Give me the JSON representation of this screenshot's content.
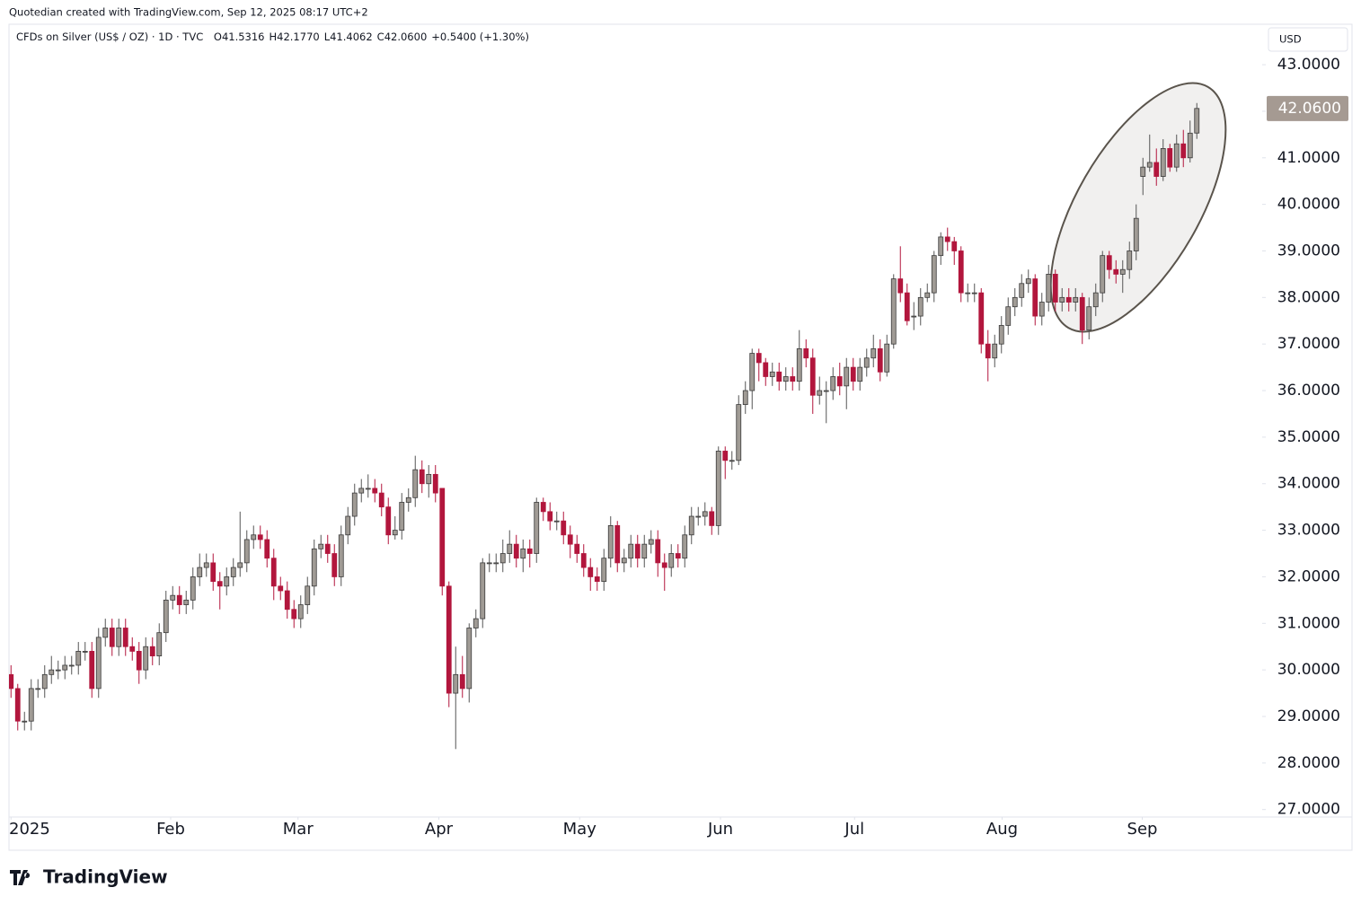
{
  "header": {
    "credit": "Quotedian created with TradingView.com, Sep 12, 2025 08:17 UTC+2"
  },
  "footer": {
    "brand": "TradingView"
  },
  "chart_data": {
    "type": "candlestick",
    "symbol": "CFDs on Silver (US$ / OZ) · 1D · TVC",
    "ohlc_labels": [
      "O41.5316",
      "H42.1770",
      "L41.4062",
      "C42.0600",
      "+0.5400 (+1.30%)"
    ],
    "currency": "USD",
    "last_price": {
      "value": 42.06,
      "label": "42.0600"
    },
    "up_color": "#a09b95",
    "down_color": "#b2163d",
    "outline_color": "#3a3a3a",
    "ylim": [
      26.84,
      43.85
    ],
    "yticks": [
      {
        "value": 27,
        "label": "27.0000"
      },
      {
        "value": 28,
        "label": "28.0000"
      },
      {
        "value": 29,
        "label": "29.0000"
      },
      {
        "value": 30,
        "label": "30.0000"
      },
      {
        "value": 31,
        "label": "31.0000"
      },
      {
        "value": 32,
        "label": "32.0000"
      },
      {
        "value": 33,
        "label": "33.0000"
      },
      {
        "value": 34,
        "label": "34.0000"
      },
      {
        "value": 35,
        "label": "35.0000"
      },
      {
        "value": 36,
        "label": "36.0000"
      },
      {
        "value": 37,
        "label": "37.0000"
      },
      {
        "value": 38,
        "label": "38.0000"
      },
      {
        "value": 39,
        "label": "39.0000"
      },
      {
        "value": 40,
        "label": "40.0000"
      },
      {
        "value": 41,
        "label": "41.0000"
      },
      {
        "value": 42,
        "label": "42.0000"
      },
      {
        "value": 43,
        "label": "43.0000"
      }
    ],
    "xlim": [
      -0.3,
      185.7
    ],
    "xticks": [
      {
        "value": 0,
        "label": "2025"
      },
      {
        "value": 23.7,
        "label": "Feb"
      },
      {
        "value": 42.6,
        "label": "Mar"
      },
      {
        "value": 63.5,
        "label": "Apr"
      },
      {
        "value": 84.4,
        "label": "May"
      },
      {
        "value": 105.3,
        "label": "Jun"
      },
      {
        "value": 125.2,
        "label": "Jul"
      },
      {
        "value": 147.1,
        "label": "Aug"
      },
      {
        "value": 167.9,
        "label": "Sep"
      }
    ],
    "open": [
      29.9,
      29.6,
      28.9,
      28.9,
      29.6,
      29.6,
      29.9,
      30.0,
      30.0,
      30.1,
      30.1,
      30.4,
      30.4,
      29.6,
      30.7,
      30.9,
      30.5,
      30.9,
      30.5,
      30.4,
      30.0,
      30.5,
      30.3,
      30.8,
      31.5,
      31.6,
      31.4,
      31.5,
      32.0,
      32.2,
      32.3,
      31.9,
      31.8,
      32.0,
      32.2,
      32.3,
      32.8,
      32.9,
      32.8,
      32.4,
      31.8,
      31.7,
      31.3,
      31.1,
      31.4,
      31.8,
      32.6,
      32.7,
      32.5,
      32.0,
      32.9,
      33.3,
      33.8,
      33.9,
      33.9,
      33.8,
      33.5,
      32.9,
      33.0,
      33.6,
      33.7,
      34.3,
      34.0,
      34.2,
      33.9,
      31.8,
      29.5,
      29.9,
      29.6,
      30.9,
      31.1,
      32.3,
      32.3,
      32.3,
      32.5,
      32.7,
      32.4,
      32.6,
      32.5,
      33.6,
      33.4,
      33.2,
      33.2,
      32.9,
      32.7,
      32.5,
      32.2,
      32.0,
      31.9,
      32.4,
      33.1,
      32.3,
      32.4,
      32.7,
      32.4,
      32.7,
      32.8,
      32.3,
      32.2,
      32.5,
      32.4,
      32.9,
      33.3,
      33.3,
      33.4,
      33.1,
      34.7,
      34.5,
      34.5,
      35.7,
      36.0,
      36.8,
      36.6,
      36.3,
      36.4,
      36.2,
      36.3,
      36.2,
      36.9,
      36.7,
      35.9,
      36.0,
      36.0,
      36.3,
      36.1,
      36.5,
      36.2,
      36.5,
      36.7,
      36.9,
      36.4,
      37.0,
      38.4,
      38.1,
      37.6,
      37.6,
      38.0,
      38.1,
      38.9,
      39.3,
      39.2,
      39.0,
      38.1,
      38.1,
      38.1,
      37.0,
      36.7,
      37.0,
      37.4,
      37.8,
      38.0,
      38.3,
      38.4,
      37.6,
      37.9,
      38.5,
      37.9,
      38.0,
      37.9,
      38.0,
      37.3,
      37.8,
      38.1,
      38.9,
      38.6,
      38.5,
      38.6,
      39.0,
      40.6,
      40.8,
      40.9,
      40.6,
      41.2,
      40.8,
      41.3,
      41.0,
      41.5316
    ],
    "high": [
      30.1,
      29.7,
      29.1,
      29.8,
      29.8,
      30.1,
      30.3,
      30.2,
      30.3,
      30.3,
      30.6,
      30.6,
      30.6,
      30.9,
      31.1,
      31.1,
      31.1,
      31.1,
      30.7,
      30.6,
      30.7,
      30.7,
      31.0,
      31.7,
      31.8,
      31.8,
      31.7,
      32.2,
      32.5,
      32.5,
      32.5,
      32.1,
      32.2,
      32.4,
      33.4,
      33.0,
      33.1,
      33.1,
      33.0,
      32.6,
      32.0,
      31.9,
      31.5,
      31.6,
      32.0,
      32.8,
      32.9,
      32.9,
      32.7,
      33.1,
      33.5,
      34.0,
      34.1,
      34.2,
      34.1,
      34.0,
      33.7,
      33.3,
      33.8,
      33.9,
      34.6,
      34.5,
      34.4,
      34.4,
      33.9,
      31.9,
      30.5,
      30.3,
      31.0,
      31.3,
      32.4,
      32.5,
      32.5,
      32.8,
      33.0,
      32.9,
      32.8,
      32.8,
      33.7,
      33.7,
      33.6,
      33.4,
      33.4,
      33.1,
      32.9,
      32.7,
      32.4,
      32.2,
      32.6,
      33.3,
      33.2,
      32.6,
      32.9,
      32.9,
      32.9,
      33.0,
      33.0,
      32.5,
      32.7,
      32.7,
      33.1,
      33.5,
      33.5,
      33.6,
      33.5,
      34.8,
      34.8,
      34.7,
      35.9,
      36.2,
      36.9,
      36.9,
      36.7,
      36.6,
      36.6,
      36.5,
      36.5,
      37.3,
      37.1,
      36.9,
      36.3,
      36.2,
      36.5,
      36.6,
      36.7,
      36.7,
      36.7,
      36.9,
      37.2,
      37.1,
      37.2,
      38.5,
      39.1,
      38.3,
      37.9,
      38.2,
      38.3,
      39.0,
      39.4,
      39.5,
      39.3,
      39.1,
      38.3,
      38.3,
      38.2,
      37.3,
      37.2,
      37.6,
      38.0,
      38.2,
      38.5,
      38.6,
      38.5,
      38.1,
      38.7,
      38.6,
      38.2,
      38.2,
      38.2,
      38.1,
      38.0,
      38.3,
      39.0,
      39.0,
      38.8,
      38.8,
      39.2,
      40.0,
      41.0,
      41.5,
      41.2,
      41.4,
      41.3,
      41.5,
      41.6,
      41.8,
      42.177
    ],
    "low": [
      29.4,
      28.7,
      28.7,
      28.7,
      29.4,
      29.4,
      29.7,
      29.8,
      29.8,
      29.9,
      29.9,
      30.2,
      29.4,
      29.4,
      30.5,
      30.3,
      30.3,
      30.3,
      30.2,
      29.7,
      29.8,
      30.1,
      30.1,
      30.6,
      31.3,
      31.2,
      31.2,
      31.3,
      31.8,
      32.0,
      31.7,
      31.3,
      31.6,
      31.8,
      32.0,
      32.1,
      32.6,
      32.6,
      32.2,
      31.5,
      31.5,
      31.1,
      30.9,
      30.9,
      31.2,
      31.6,
      32.4,
      32.3,
      31.8,
      31.8,
      32.7,
      33.1,
      33.6,
      33.7,
      33.6,
      33.3,
      32.7,
      32.8,
      32.8,
      33.4,
      33.5,
      33.8,
      33.7,
      33.6,
      31.6,
      29.2,
      28.3,
      29.4,
      29.3,
      30.7,
      30.9,
      32.1,
      32.1,
      32.1,
      32.3,
      32.2,
      32.1,
      32.2,
      32.3,
      33.2,
      33.0,
      33.0,
      32.7,
      32.4,
      32.3,
      32.0,
      31.7,
      31.7,
      31.7,
      32.2,
      32.1,
      32.1,
      32.2,
      32.2,
      32.2,
      32.5,
      32.0,
      31.7,
      32.0,
      32.2,
      32.2,
      32.7,
      33.1,
      33.1,
      32.9,
      32.9,
      34.1,
      34.3,
      34.4,
      35.5,
      35.6,
      36.2,
      36.1,
      36.1,
      36.0,
      36.0,
      36.0,
      36.0,
      36.5,
      35.5,
      35.7,
      35.3,
      35.8,
      35.9,
      35.6,
      36.0,
      36.0,
      36.3,
      36.5,
      36.2,
      36.3,
      36.9,
      37.9,
      37.4,
      37.3,
      37.4,
      37.9,
      37.9,
      38.7,
      39.0,
      38.7,
      37.9,
      37.9,
      37.9,
      36.8,
      36.2,
      36.5,
      36.8,
      37.2,
      37.6,
      37.8,
      38.1,
      37.4,
      37.4,
      37.7,
      37.7,
      37.7,
      37.7,
      37.7,
      37.0,
      37.1,
      37.6,
      37.9,
      38.4,
      38.3,
      38.1,
      38.4,
      38.8,
      40.2,
      40.7,
      40.4,
      40.5,
      40.7,
      40.7,
      40.8,
      40.9,
      41.4062
    ],
    "close": [
      29.6,
      28.9,
      28.9,
      29.6,
      29.6,
      29.9,
      30.0,
      30.0,
      30.1,
      30.1,
      30.4,
      30.4,
      29.6,
      30.7,
      30.9,
      30.5,
      30.9,
      30.5,
      30.4,
      30.0,
      30.5,
      30.3,
      30.8,
      31.5,
      31.6,
      31.4,
      31.5,
      32.0,
      32.2,
      32.3,
      31.9,
      31.8,
      32.0,
      32.2,
      32.3,
      32.8,
      32.9,
      32.8,
      32.4,
      31.8,
      31.7,
      31.3,
      31.1,
      31.4,
      31.8,
      32.6,
      32.7,
      32.5,
      32.0,
      32.9,
      33.3,
      33.8,
      33.9,
      33.9,
      33.8,
      33.5,
      32.9,
      33.0,
      33.6,
      33.7,
      34.3,
      34.0,
      34.2,
      33.8,
      31.8,
      29.5,
      29.9,
      29.6,
      30.9,
      31.1,
      32.3,
      32.3,
      32.3,
      32.5,
      32.7,
      32.4,
      32.6,
      32.5,
      33.6,
      33.4,
      33.2,
      33.2,
      32.9,
      32.7,
      32.5,
      32.2,
      32.0,
      31.9,
      32.4,
      33.1,
      32.3,
      32.4,
      32.7,
      32.4,
      32.7,
      32.8,
      32.3,
      32.2,
      32.5,
      32.4,
      32.9,
      33.3,
      33.3,
      33.4,
      33.1,
      34.7,
      34.5,
      34.5,
      35.7,
      36.0,
      36.8,
      36.6,
      36.3,
      36.4,
      36.2,
      36.3,
      36.2,
      36.9,
      36.7,
      35.9,
      36.0,
      36.0,
      36.3,
      36.1,
      36.5,
      36.2,
      36.5,
      36.7,
      36.9,
      36.4,
      37.0,
      38.4,
      38.1,
      37.5,
      37.6,
      38.0,
      38.1,
      38.9,
      39.3,
      39.2,
      39.0,
      38.1,
      38.1,
      38.1,
      37.0,
      36.7,
      37.0,
      37.4,
      37.8,
      38.0,
      38.3,
      38.4,
      37.6,
      37.9,
      38.5,
      37.9,
      38.0,
      37.9,
      38.0,
      37.3,
      37.8,
      38.1,
      38.9,
      38.6,
      38.5,
      38.6,
      39.0,
      39.7,
      40.8,
      40.9,
      40.6,
      41.2,
      40.8,
      41.3,
      41.0,
      41.53,
      42.06
    ]
  }
}
